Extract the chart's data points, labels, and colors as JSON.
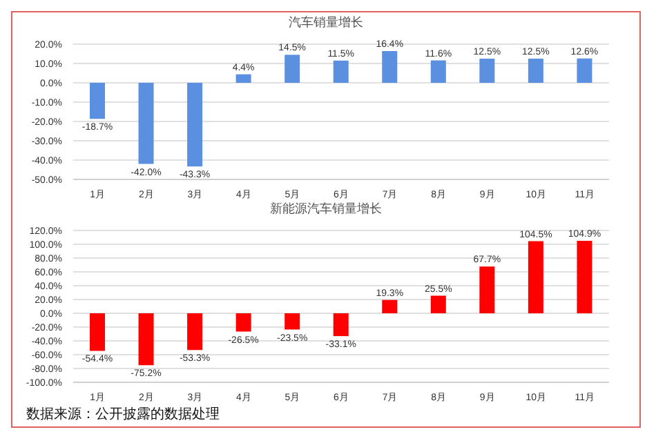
{
  "chart_data": [
    {
      "type": "bar",
      "title": "汽车销量增长",
      "categories": [
        "1月",
        "2月",
        "3月",
        "4月",
        "5月",
        "6月",
        "7月",
        "8月",
        "9月",
        "10月",
        "11月"
      ],
      "series": [
        {
          "color": "#5b8fdf",
          "values": [
            -18.7,
            -42.0,
            -43.3,
            4.4,
            14.5,
            11.5,
            16.4,
            11.6,
            12.5,
            12.5,
            12.6
          ],
          "value_labels": [
            "-18.7%",
            "-42.0%",
            "-43.3%",
            "4.4%",
            "14.5%",
            "11.5%",
            "16.4%",
            "11.6%",
            "12.5%",
            "12.5%",
            "12.6%"
          ]
        }
      ],
      "ylim": [
        -50,
        20
      ],
      "yticks": [
        {
          "value": -50,
          "label": "-50.0%"
        },
        {
          "value": -40,
          "label": "-40.0%"
        },
        {
          "value": -30,
          "label": "-30.0%"
        },
        {
          "value": -20,
          "label": "-20.0%"
        },
        {
          "value": -10,
          "label": "-10.0%"
        },
        {
          "value": 0,
          "label": "0.0%"
        },
        {
          "value": 10,
          "label": "10.0%"
        },
        {
          "value": 20,
          "label": "20.0%"
        }
      ],
      "grid": "y",
      "legend": false
    },
    {
      "type": "bar",
      "title": "新能源汽车销量增长",
      "categories": [
        "1月",
        "2月",
        "3月",
        "4月",
        "5月",
        "6月",
        "7月",
        "8月",
        "9月",
        "10月",
        "11月"
      ],
      "series": [
        {
          "color": "#ff0000",
          "values": [
            -54.4,
            -75.2,
            -53.3,
            -26.5,
            -23.5,
            -33.1,
            19.3,
            25.5,
            67.7,
            104.5,
            104.9
          ],
          "value_labels": [
            "-54.4%",
            "-75.2%",
            "-53.3%",
            "-26.5%",
            "-23.5%",
            "-33.1%",
            "19.3%",
            "25.5%",
            "67.7%",
            "104.5%",
            "104.9%"
          ]
        }
      ],
      "ylim": [
        -100,
        120
      ],
      "yticks": [
        {
          "value": -100,
          "label": "-100.0%"
        },
        {
          "value": -80,
          "label": "-80.0%"
        },
        {
          "value": -60,
          "label": "-60.0%"
        },
        {
          "value": -40,
          "label": "-40.0%"
        },
        {
          "value": -20,
          "label": "-20.0%"
        },
        {
          "value": 0,
          "label": "0.0%"
        },
        {
          "value": 20,
          "label": "20.0%"
        },
        {
          "value": 40,
          "label": "40.0%"
        },
        {
          "value": 60,
          "label": "60.0%"
        },
        {
          "value": 80,
          "label": "80.0%"
        },
        {
          "value": 100,
          "label": "100.0%"
        },
        {
          "value": 120,
          "label": "120.0%"
        }
      ],
      "grid": "y",
      "legend": false,
      "annotations": [
        "数据来源：公开披露的数据处理"
      ]
    }
  ]
}
